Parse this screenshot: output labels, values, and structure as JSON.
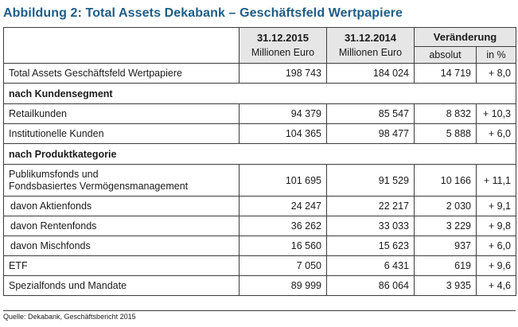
{
  "title": "Abbildung 2: Total Assets Dekabank – Geschäftsfeld Wertpapiere",
  "header": {
    "col1_date": "31.12.2015",
    "col1_unit": "Millionen Euro",
    "col2_date": "31.12.2014",
    "col2_unit": "Millionen Euro",
    "change": "Veränderung",
    "abs": "absolut",
    "pct": "in %"
  },
  "rows": [
    {
      "label": "Total Assets Geschäftsfeld Wertpapiere",
      "v2015": "198 743",
      "v2014": "184 024",
      "abs": "14 719",
      "pct": "+ 8,0"
    },
    {
      "section": "nach Kundensegment"
    },
    {
      "label": "Retailkunden",
      "v2015": "94 379",
      "v2014": "85 547",
      "abs": "8 832",
      "pct": "+ 10,3"
    },
    {
      "label": "Institutionelle Kunden",
      "v2015": "104 365",
      "v2014": "98 477",
      "abs": "5 888",
      "pct": "+ 6,0"
    },
    {
      "section": "nach Produktkategorie"
    },
    {
      "label_line1": "Publikumsfonds und",
      "label_line2": "Fondsbasiertes Vermögensmanagement",
      "v2015": "101 695",
      "v2014": "91 529",
      "abs": "10 166",
      "pct": "+ 11,1"
    },
    {
      "label": "davon Aktienfonds",
      "v2015": "24 247",
      "v2014": "22 217",
      "abs": "2 030",
      "pct": "+ 9,1"
    },
    {
      "label": "davon Rentenfonds",
      "v2015": "36 262",
      "v2014": "33 033",
      "abs": "3 229",
      "pct": "+ 9,8"
    },
    {
      "label": "davon Mischfonds",
      "v2015": "16 560",
      "v2014": "15 623",
      "abs": "937",
      "pct": "+ 6,0"
    },
    {
      "label": "ETF",
      "v2015": "7 050",
      "v2014": "6 431",
      "abs": "619",
      "pct": "+ 9,6"
    },
    {
      "label": "Spezialfonds und Mandate",
      "v2015": "89 999",
      "v2014": "86 064",
      "abs": "3 935",
      "pct": "+ 4,6"
    }
  ],
  "source": "Quelle: Dekabank, Geschäftsbericht 2015",
  "colors": {
    "title": "#1e5d86",
    "header_bg": "#e6e6e6",
    "border": "#3c3c3c"
  }
}
